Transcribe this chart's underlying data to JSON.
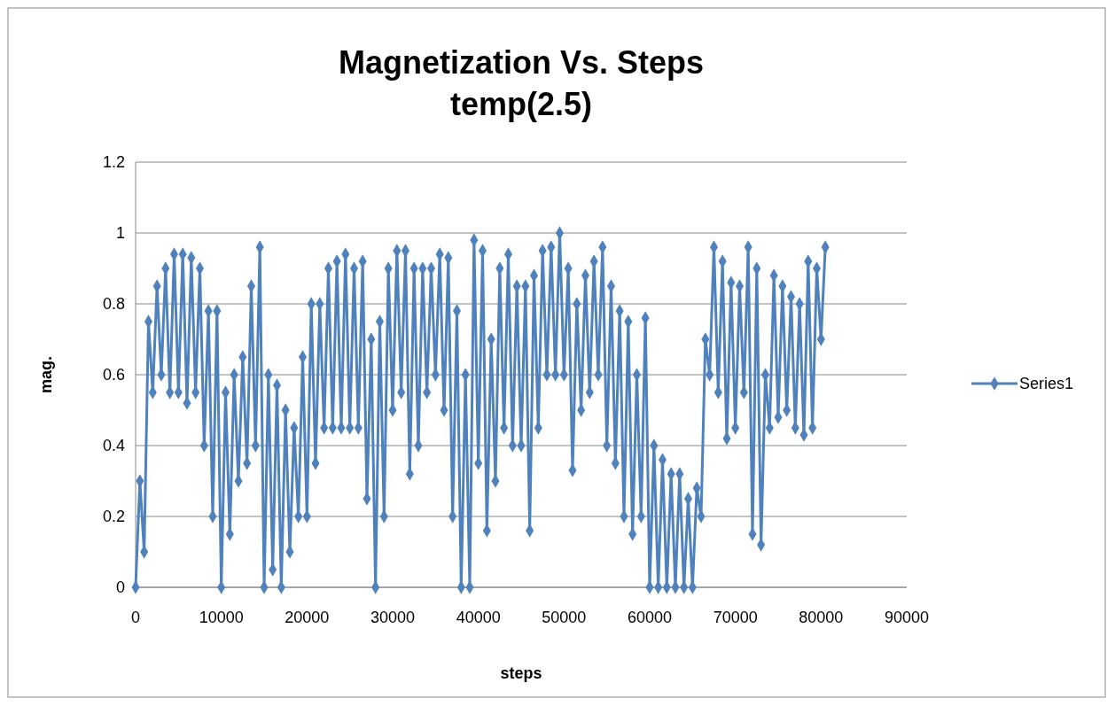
{
  "chart_data": {
    "type": "line",
    "title": "Magnetization Vs. Steps",
    "subtitle": "temp(2.5)",
    "xlabel": "steps",
    "ylabel": "mag.",
    "x": [
      0,
      500,
      1000,
      1500,
      2000,
      2500,
      3000,
      3500,
      4000,
      4500,
      5000,
      5500,
      6000,
      6500,
      7000,
      7500,
      8000,
      8500,
      9000,
      9500,
      10000,
      10500,
      11000,
      11500,
      12000,
      12500,
      13000,
      13500,
      14000,
      14500,
      15000,
      15500,
      16000,
      16500,
      17000,
      17500,
      18000,
      18500,
      19000,
      19500,
      20000,
      20500,
      21000,
      21500,
      22000,
      22500,
      23000,
      23500,
      24000,
      24500,
      25000,
      25500,
      26000,
      26500,
      27000,
      27500,
      28000,
      28500,
      29000,
      29500,
      30000,
      30500,
      31000,
      31500,
      32000,
      32500,
      33000,
      33500,
      34000,
      34500,
      35000,
      35500,
      36000,
      36500,
      37000,
      37500,
      38000,
      38500,
      39000,
      39500,
      40000,
      40500,
      41000,
      41500,
      42000,
      42500,
      43000,
      43500,
      44000,
      44500,
      45000,
      45500,
      46000,
      46500,
      47000,
      47500,
      48000,
      48500,
      49000,
      49500,
      50000,
      50500,
      51000,
      51500,
      52000,
      52500,
      53000,
      53500,
      54000,
      54500,
      55000,
      55500,
      56000,
      56500,
      57000,
      57500,
      58000,
      58500,
      59000,
      59500,
      60000,
      60500,
      61000,
      61500,
      62000,
      62500,
      63000,
      63500,
      64000,
      64500,
      65000,
      65500,
      66000,
      66500,
      67000,
      67500,
      68000,
      68500,
      69000,
      69500,
      70000,
      70500,
      71000,
      71500,
      72000,
      72500,
      73000,
      73500,
      74000,
      74500,
      75000,
      75500,
      76000,
      76500,
      77000,
      77500,
      78000,
      78500,
      79000,
      79500,
      80000,
      80500
    ],
    "series": [
      {
        "name": "Series1",
        "color": "#4f81bd",
        "values": [
          0,
          0.3,
          0.1,
          0.75,
          0.55,
          0.85,
          0.6,
          0.9,
          0.55,
          0.94,
          0.55,
          0.94,
          0.52,
          0.93,
          0.55,
          0.9,
          0.4,
          0.78,
          0.2,
          0.78,
          0,
          0.55,
          0.15,
          0.6,
          0.3,
          0.65,
          0.35,
          0.85,
          0.4,
          0.96,
          0,
          0.6,
          0.05,
          0.57,
          0,
          0.5,
          0.1,
          0.45,
          0.2,
          0.65,
          0.2,
          0.8,
          0.35,
          0.8,
          0.45,
          0.9,
          0.45,
          0.92,
          0.45,
          0.94,
          0.45,
          0.9,
          0.45,
          0.92,
          0.25,
          0.7,
          0,
          0.75,
          0.2,
          0.9,
          0.5,
          0.95,
          0.55,
          0.95,
          0.32,
          0.9,
          0.4,
          0.9,
          0.55,
          0.9,
          0.6,
          0.94,
          0.5,
          0.93,
          0.2,
          0.78,
          0,
          0.6,
          0,
          0.98,
          0.35,
          0.95,
          0.16,
          0.7,
          0.3,
          0.9,
          0.45,
          0.94,
          0.4,
          0.85,
          0.4,
          0.85,
          0.16,
          0.88,
          0.45,
          0.95,
          0.6,
          0.96,
          0.6,
          1,
          0.6,
          0.9,
          0.33,
          0.8,
          0.5,
          0.88,
          0.55,
          0.92,
          0.6,
          0.96,
          0.4,
          0.85,
          0.35,
          0.78,
          0.2,
          0.75,
          0.15,
          0.6,
          0.2,
          0.76,
          0,
          0.4,
          0,
          0.36,
          0,
          0.32,
          0,
          0.32,
          0,
          0.25,
          0,
          0.28,
          0.2,
          0.7,
          0.6,
          0.96,
          0.55,
          0.92,
          0.42,
          0.86,
          0.45,
          0.85,
          0.55,
          0.96,
          0.15,
          0.9,
          0.12,
          0.6,
          0.45,
          0.88,
          0.48,
          0.85,
          0.5,
          0.82,
          0.45,
          0.8,
          0.43,
          0.92,
          0.45,
          0.9,
          0.7,
          0.96
        ]
      }
    ],
    "xlim": [
      0,
      90000
    ],
    "xticks": [
      0,
      10000,
      20000,
      30000,
      40000,
      50000,
      60000,
      70000,
      80000,
      90000
    ],
    "ylim": [
      0,
      1.2
    ],
    "yticks": [
      0,
      0.2,
      0.4,
      0.6,
      0.8,
      1,
      1.2
    ],
    "grid": "y",
    "legend": "right",
    "marker": "diamond",
    "line_style": "solid"
  }
}
